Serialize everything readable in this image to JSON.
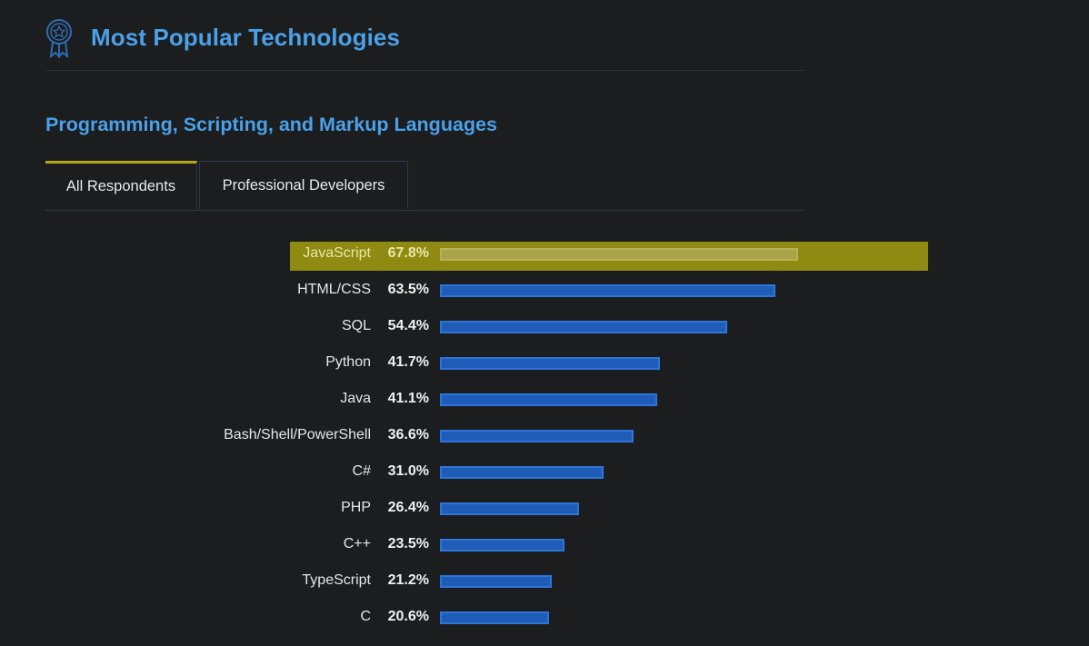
{
  "header": {
    "title": "Most Popular Technologies",
    "icon": "award-badge-icon"
  },
  "section": {
    "title": "Programming, Scripting, and Markup Languages"
  },
  "tabs": [
    {
      "label": "All Respondents",
      "active": true
    },
    {
      "label": "Professional Developers",
      "active": false
    }
  ],
  "colors": {
    "accent": "#4aa1e9",
    "bar": "#1e5cb8",
    "highlight": "#8f8a12",
    "background": "#1c1d1f"
  },
  "chart_data": {
    "type": "bar",
    "orientation": "horizontal",
    "highlighted": "JavaScript",
    "categories": [
      "JavaScript",
      "HTML/CSS",
      "SQL",
      "Python",
      "Java",
      "Bash/Shell/PowerShell",
      "C#",
      "PHP",
      "C++",
      "TypeScript",
      "C"
    ],
    "values": [
      67.8,
      63.5,
      54.4,
      41.7,
      41.1,
      36.6,
      31.0,
      26.4,
      23.5,
      21.2,
      20.6
    ],
    "value_labels": [
      "67.8%",
      "63.5%",
      "54.4%",
      "41.7%",
      "41.1%",
      "36.6%",
      "31.0%",
      "26.4%",
      "23.5%",
      "21.2%",
      "20.6%"
    ]
  }
}
